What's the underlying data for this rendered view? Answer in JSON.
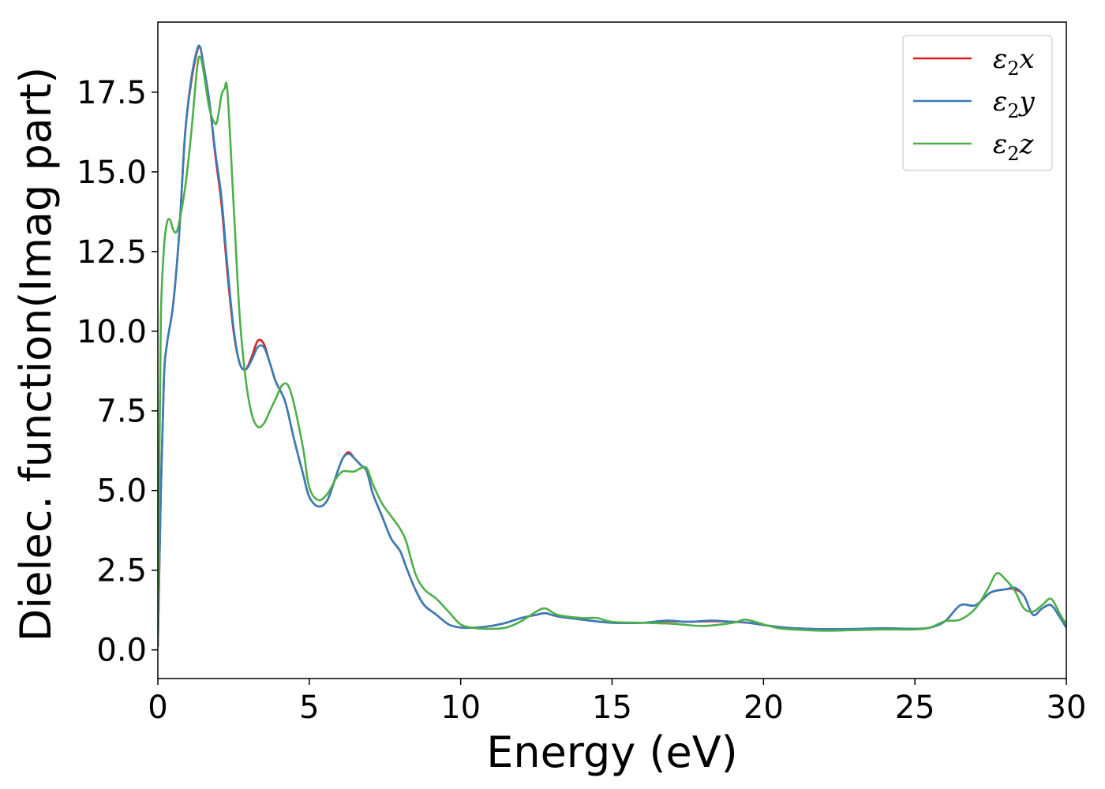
{
  "chart_data": {
    "type": "line",
    "title": "",
    "xlabel": "Energy (eV)",
    "ylabel": "Dielec. function(Imag part)",
    "xlim": [
      0,
      30
    ],
    "ylim": [
      -0.9,
      19.7
    ],
    "xticks": [
      0,
      5,
      10,
      15,
      20,
      25,
      30
    ],
    "xtick_labels": [
      "0",
      "5",
      "10",
      "15",
      "20",
      "25",
      "30"
    ],
    "yticks": [
      0.0,
      2.5,
      5.0,
      7.5,
      10.0,
      12.5,
      15.0,
      17.5
    ],
    "ytick_labels": [
      "0.0",
      "2.5",
      "5.0",
      "7.5",
      "10.0",
      "12.5",
      "15.0",
      "17.5"
    ],
    "grid": false,
    "legend_position": "top-right",
    "series": [
      {
        "name": "ε2x",
        "legend_base": "ε",
        "legend_sub": "2",
        "legend_suffix": "x",
        "color": "#e41a1c",
        "x": [
          0.0,
          0.1,
          0.2,
          0.3,
          0.5,
          0.7,
          0.9,
          1.1,
          1.3,
          1.4,
          1.5,
          1.7,
          1.9,
          2.1,
          2.3,
          2.5,
          2.7,
          2.9,
          3.1,
          3.3,
          3.5,
          3.7,
          3.9,
          4.2,
          4.5,
          4.8,
          5.0,
          5.3,
          5.6,
          5.9,
          6.1,
          6.3,
          6.5,
          6.7,
          6.9,
          7.1,
          7.4,
          7.7,
          8.0,
          8.2,
          8.5,
          8.8,
          9.2,
          9.6,
          10.0,
          10.5,
          11.0,
          11.5,
          12.0,
          12.5,
          12.8,
          13.2,
          14.0,
          15.0,
          16.0,
          16.8,
          17.5,
          18.3,
          19.0,
          19.5,
          20.0,
          20.5,
          21.0,
          22.0,
          23.0,
          24.0,
          25.0,
          25.5,
          26.0,
          26.5,
          27.0,
          27.5,
          28.0,
          28.3,
          28.6,
          28.9,
          29.2,
          29.5,
          29.8,
          30.0
        ],
        "y": [
          0.1,
          5.0,
          8.5,
          9.6,
          10.8,
          13.0,
          16.2,
          17.8,
          18.8,
          18.9,
          18.4,
          17.2,
          15.5,
          14.0,
          11.8,
          10.0,
          9.0,
          8.8,
          9.2,
          9.7,
          9.6,
          9.0,
          8.4,
          7.8,
          6.6,
          5.5,
          4.8,
          4.5,
          4.7,
          5.5,
          6.0,
          6.2,
          6.0,
          5.8,
          5.6,
          4.9,
          4.2,
          3.5,
          3.1,
          2.6,
          1.9,
          1.4,
          1.1,
          0.8,
          0.7,
          0.7,
          0.75,
          0.85,
          1.0,
          1.1,
          1.15,
          1.05,
          0.95,
          0.85,
          0.85,
          0.9,
          0.88,
          0.9,
          0.88,
          0.85,
          0.78,
          0.72,
          0.68,
          0.65,
          0.65,
          0.66,
          0.66,
          0.7,
          0.9,
          1.4,
          1.4,
          1.8,
          1.9,
          1.9,
          1.7,
          1.1,
          1.3,
          1.4,
          1.0,
          0.7
        ]
      },
      {
        "name": "ε2y",
        "legend_base": "ε",
        "legend_sub": "2",
        "legend_suffix": "y",
        "color": "#377eb8",
        "x": [
          0.0,
          0.1,
          0.2,
          0.3,
          0.5,
          0.7,
          0.9,
          1.1,
          1.3,
          1.4,
          1.5,
          1.7,
          1.9,
          2.1,
          2.3,
          2.5,
          2.7,
          2.9,
          3.1,
          3.3,
          3.5,
          3.7,
          3.9,
          4.2,
          4.5,
          4.8,
          5.0,
          5.3,
          5.6,
          5.9,
          6.1,
          6.3,
          6.5,
          6.7,
          6.9,
          7.1,
          7.4,
          7.7,
          8.0,
          8.2,
          8.5,
          8.8,
          9.2,
          9.6,
          10.0,
          10.5,
          11.0,
          11.5,
          12.0,
          12.5,
          12.8,
          13.2,
          14.0,
          15.0,
          16.0,
          16.8,
          17.5,
          18.3,
          19.0,
          19.5,
          20.0,
          20.5,
          21.0,
          22.0,
          23.0,
          24.0,
          25.0,
          25.5,
          26.0,
          26.5,
          27.0,
          27.5,
          28.0,
          28.3,
          28.6,
          28.9,
          29.2,
          29.5,
          29.8,
          30.0
        ],
        "y": [
          0.1,
          5.0,
          8.5,
          9.6,
          10.8,
          13.0,
          16.2,
          17.9,
          18.85,
          18.9,
          18.4,
          17.2,
          15.6,
          14.2,
          12.0,
          10.1,
          9.0,
          8.8,
          9.1,
          9.5,
          9.5,
          9.0,
          8.4,
          7.8,
          6.6,
          5.5,
          4.8,
          4.5,
          4.7,
          5.5,
          6.0,
          6.15,
          6.0,
          5.8,
          5.6,
          4.9,
          4.2,
          3.5,
          3.1,
          2.6,
          1.9,
          1.4,
          1.1,
          0.8,
          0.7,
          0.7,
          0.75,
          0.85,
          1.0,
          1.1,
          1.15,
          1.05,
          0.95,
          0.85,
          0.85,
          0.92,
          0.88,
          0.92,
          0.88,
          0.85,
          0.78,
          0.72,
          0.68,
          0.65,
          0.66,
          0.68,
          0.66,
          0.7,
          0.9,
          1.4,
          1.4,
          1.8,
          1.9,
          1.95,
          1.7,
          1.1,
          1.3,
          1.4,
          1.0,
          0.7
        ]
      },
      {
        "name": "ε2z",
        "legend_base": "ε",
        "legend_sub": "2",
        "legend_suffix": "z",
        "color": "#4daf4a",
        "x": [
          0.0,
          0.05,
          0.1,
          0.2,
          0.3,
          0.4,
          0.5,
          0.6,
          0.7,
          0.9,
          1.1,
          1.3,
          1.4,
          1.5,
          1.7,
          1.9,
          2.0,
          2.1,
          2.2,
          2.3,
          2.5,
          2.7,
          2.9,
          3.1,
          3.3,
          3.5,
          3.7,
          3.9,
          4.1,
          4.3,
          4.5,
          4.8,
          5.0,
          5.3,
          5.6,
          5.9,
          6.1,
          6.3,
          6.5,
          6.7,
          6.9,
          7.1,
          7.4,
          7.7,
          8.0,
          8.2,
          8.5,
          8.8,
          9.2,
          9.6,
          10.0,
          10.5,
          11.0,
          11.5,
          12.0,
          12.5,
          12.8,
          13.2,
          14.0,
          14.5,
          15.0,
          16.0,
          17.0,
          18.0,
          19.0,
          19.4,
          20.0,
          20.5,
          21.0,
          22.0,
          23.0,
          24.0,
          25.0,
          25.5,
          26.0,
          26.5,
          27.0,
          27.4,
          27.7,
          28.0,
          28.3,
          28.6,
          28.9,
          29.2,
          29.5,
          29.8,
          30.0
        ],
        "y": [
          0.1,
          6.0,
          10.5,
          12.6,
          13.4,
          13.5,
          13.2,
          13.1,
          13.4,
          14.5,
          16.2,
          18.3,
          18.6,
          18.2,
          17.0,
          16.5,
          16.8,
          17.4,
          17.6,
          17.5,
          14.0,
          10.5,
          8.5,
          7.4,
          7.0,
          7.1,
          7.5,
          7.9,
          8.3,
          8.3,
          7.7,
          6.3,
          5.1,
          4.7,
          4.9,
          5.4,
          5.6,
          5.6,
          5.6,
          5.7,
          5.7,
          5.2,
          4.6,
          4.2,
          3.8,
          3.4,
          2.4,
          1.9,
          1.6,
          1.2,
          0.8,
          0.68,
          0.66,
          0.7,
          0.9,
          1.2,
          1.3,
          1.1,
          1.0,
          1.0,
          0.88,
          0.85,
          0.82,
          0.75,
          0.85,
          0.95,
          0.8,
          0.68,
          0.64,
          0.6,
          0.62,
          0.64,
          0.64,
          0.7,
          0.9,
          0.95,
          1.3,
          1.9,
          2.4,
          2.2,
          1.85,
          1.3,
          1.2,
          1.4,
          1.6,
          1.1,
          0.8
        ]
      }
    ]
  }
}
